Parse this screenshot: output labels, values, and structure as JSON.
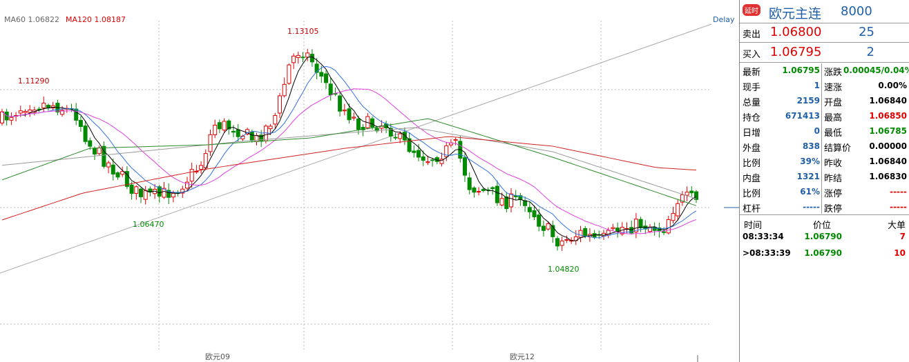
{
  "chart": {
    "ma60_label": "MA60 1.06822",
    "ma120_label": "MA120 1.08187",
    "delay": "Delay",
    "price_marks": [
      "1.13105",
      "1.11290",
      "1.06470",
      "1.04820"
    ],
    "x_labels": [
      "欧元09",
      "欧元12"
    ]
  },
  "header": {
    "badge": "延时",
    "title": "欧元主连",
    "code": "8000"
  },
  "orderbook": [
    {
      "label": "卖出",
      "price": "1.06800",
      "qty": "25"
    },
    {
      "label": "买入",
      "price": "1.06795",
      "qty": "2"
    }
  ],
  "stats": [
    [
      "最新",
      "1.06795",
      "涨跌",
      "0.00045/0.04%"
    ],
    [
      "现手",
      "1",
      "速涨",
      "0.00%"
    ],
    [
      "总量",
      "2159",
      "开盘",
      "1.06840"
    ],
    [
      "持仓",
      "671413",
      "最高",
      "1.06850"
    ],
    [
      "日增",
      "0",
      "最低",
      "1.06785"
    ],
    [
      "外盘",
      "838",
      "结算价",
      "0.00000"
    ],
    [
      "比例",
      "39%",
      "昨收",
      "1.06840"
    ],
    [
      "内盘",
      "1321",
      "昨结",
      "1.06830"
    ],
    [
      "比例",
      "61%",
      "涨停",
      "-----"
    ],
    [
      "杠杆",
      "-----",
      "跌停",
      "-----"
    ]
  ],
  "trades": {
    "header": [
      "时间",
      "价位",
      "大单"
    ],
    "rows": [
      [
        "08:33:34",
        "1.06790",
        "7"
      ],
      [
        ">08:33:39",
        "1.06790",
        "10"
      ]
    ]
  }
}
